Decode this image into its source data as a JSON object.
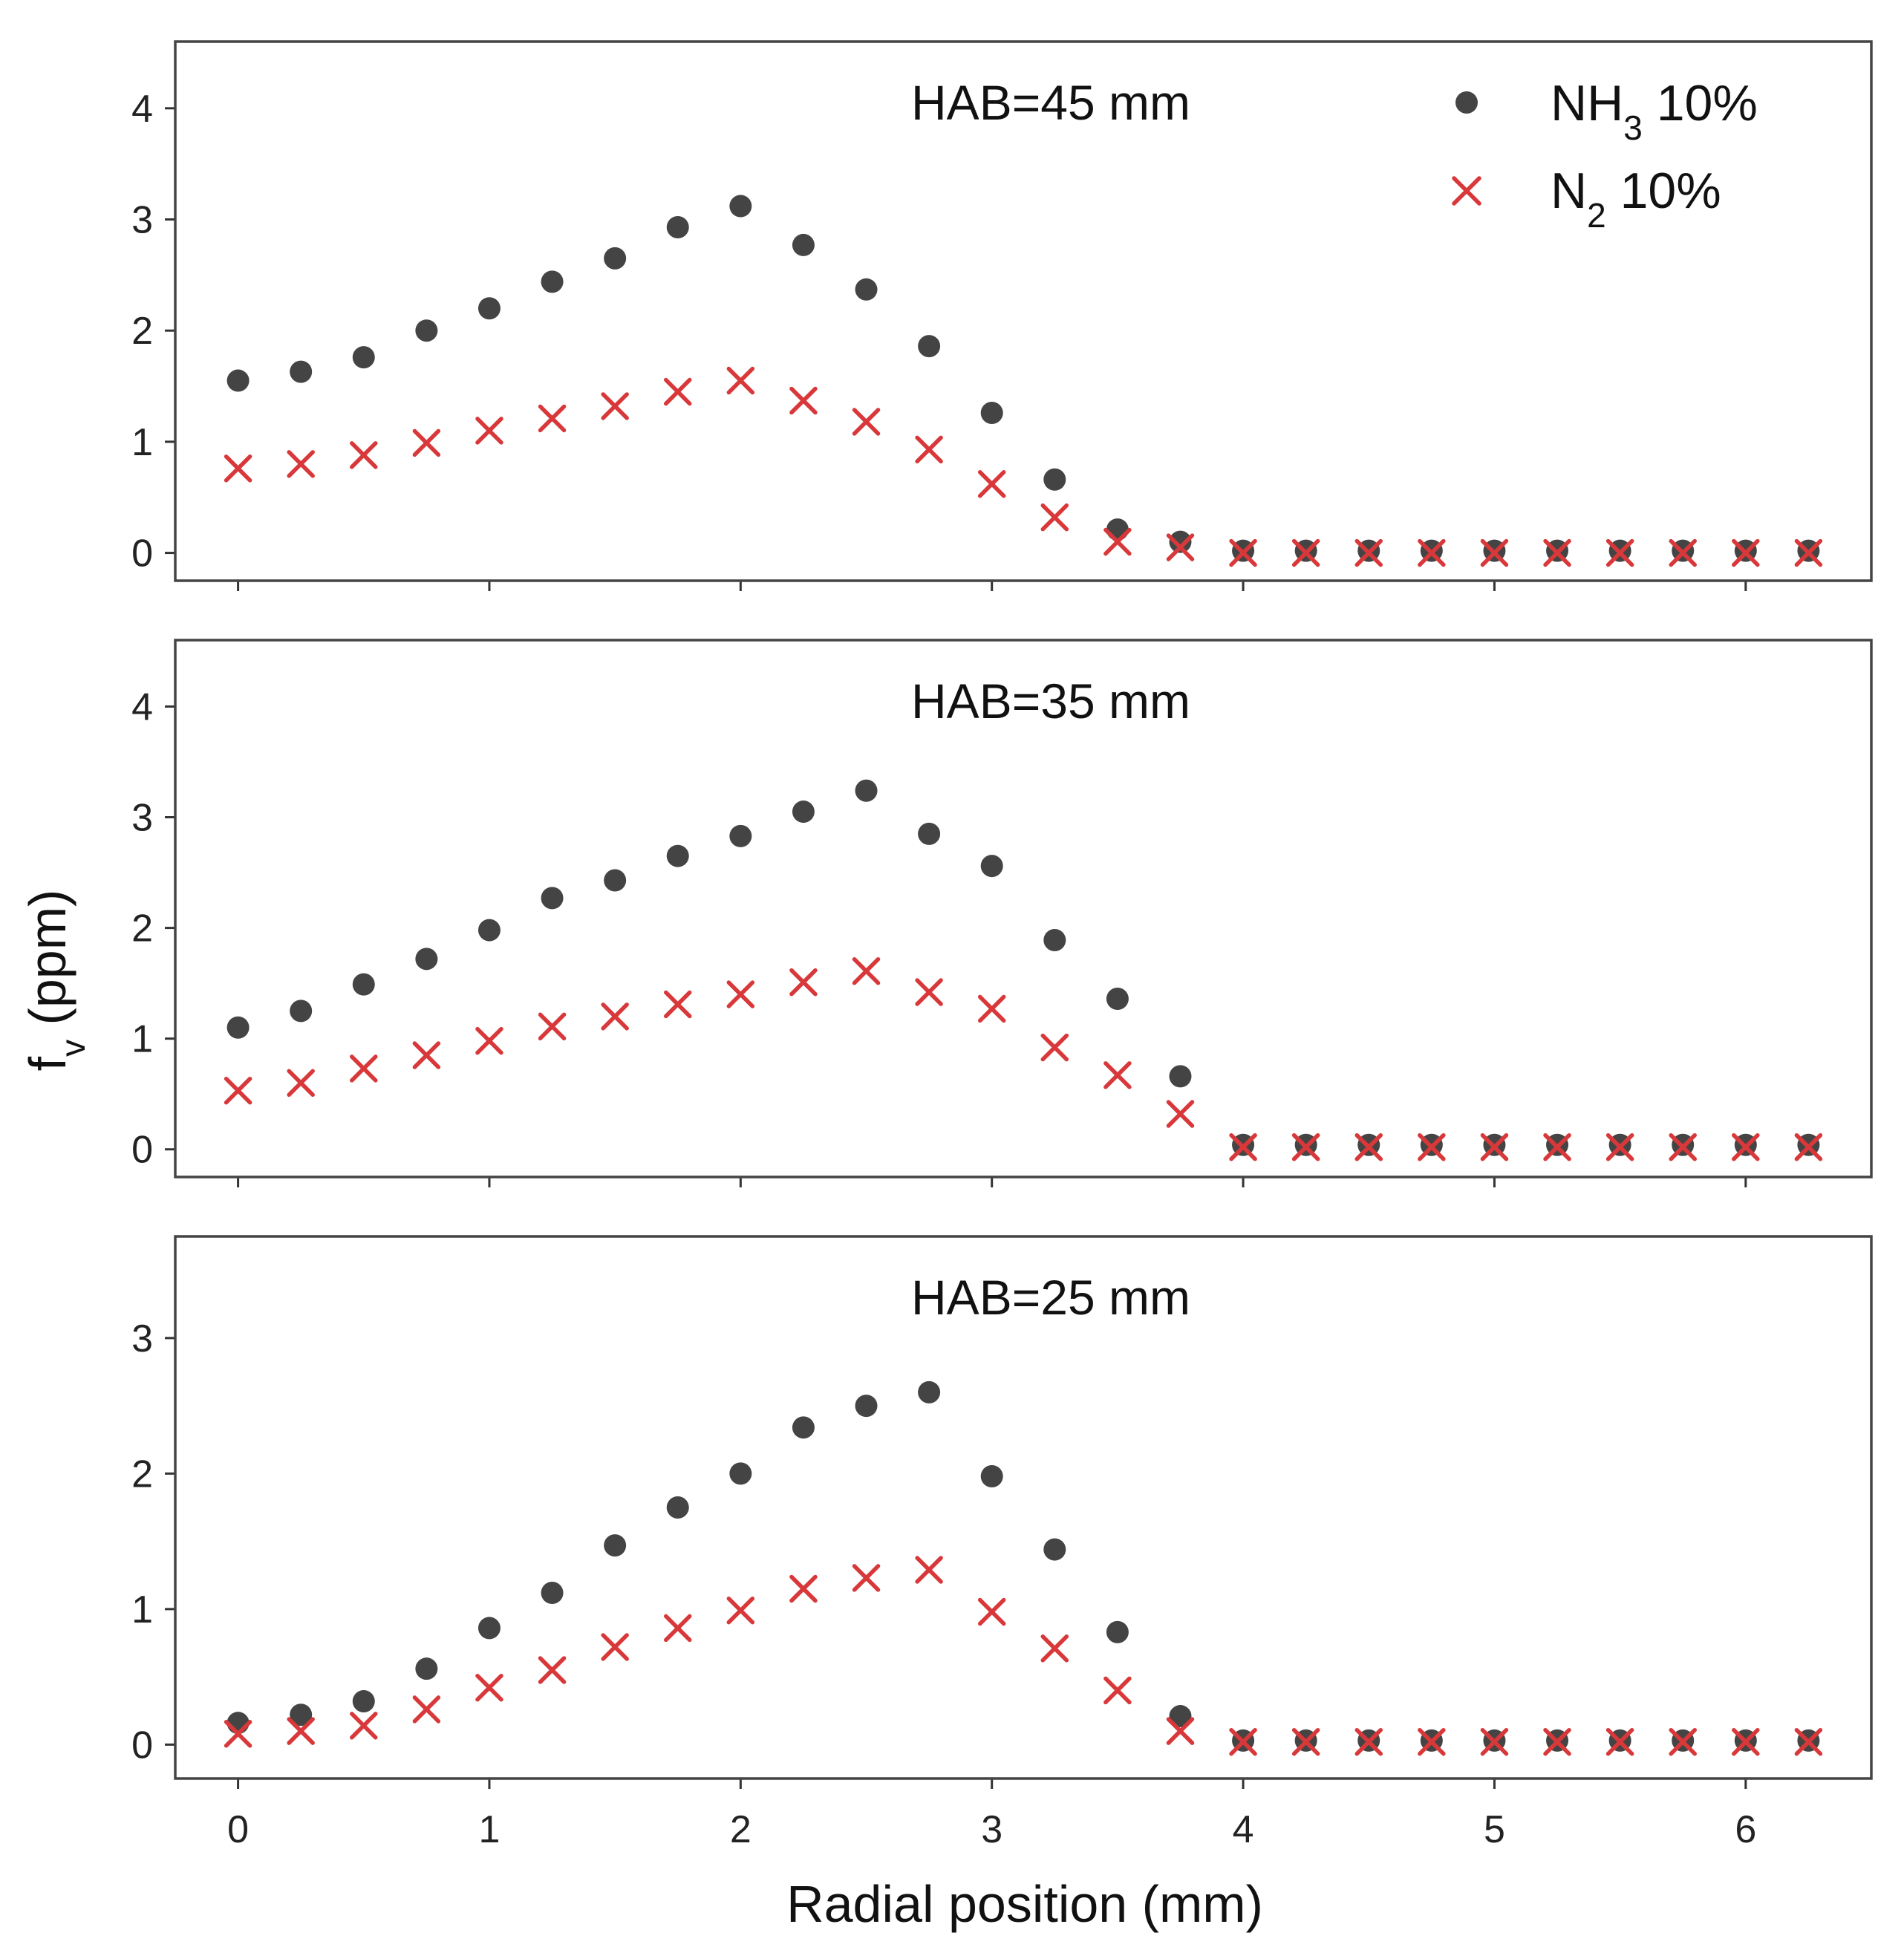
{
  "chart_data": {
    "type": "scatter",
    "xlabel": "Radial position (mm)",
    "ylabel": "f",
    "ylabel_subscript": "v",
    "ylabel_unit": " (ppm)",
    "xlim": [
      -0.25,
      6.5
    ],
    "xticks": [
      0,
      1,
      2,
      3,
      4,
      5,
      6
    ],
    "x": [
      0,
      0.25,
      0.5,
      0.75,
      1,
      1.25,
      1.5,
      1.75,
      2,
      2.25,
      2.5,
      2.75,
      3,
      3.25,
      3.5,
      3.75,
      4,
      4.25,
      4.5,
      4.75,
      5,
      5.25,
      5.5,
      5.75,
      6,
      6.25
    ],
    "legend": {
      "position": "top-right",
      "entries": [
        {
          "base": "NH",
          "sub": "3",
          "suffix": " 10%",
          "marker": "circle",
          "color": "#444444"
        },
        {
          "base": "N",
          "sub": "2",
          "suffix": " 10%",
          "marker": "x",
          "color": "#d9383a"
        }
      ]
    },
    "panels": [
      {
        "title": "HAB=45 mm",
        "ylim": [
          -0.25,
          4.6
        ],
        "yticks": [
          0,
          1,
          2,
          3,
          4
        ],
        "series": [
          {
            "name": "NH3 10%",
            "values": [
              1.55,
              1.63,
              1.76,
              2.0,
              2.2,
              2.44,
              2.65,
              2.93,
              3.12,
              2.77,
              2.37,
              1.86,
              1.26,
              0.66,
              0.21,
              0.1,
              0.02,
              0.02,
              0.02,
              0.02,
              0.02,
              0.02,
              0.02,
              0.02,
              0.02,
              0.02
            ]
          },
          {
            "name": "N2 10%",
            "values": [
              0.76,
              0.8,
              0.88,
              0.99,
              1.1,
              1.21,
              1.32,
              1.45,
              1.55,
              1.37,
              1.18,
              0.93,
              0.62,
              0.32,
              0.1,
              0.05,
              0.0,
              0.0,
              0.0,
              0.0,
              0.0,
              0.0,
              0.0,
              0.0,
              0.0,
              0.0
            ]
          }
        ]
      },
      {
        "title": "HAB=35 mm",
        "ylim": [
          -0.25,
          4.6
        ],
        "yticks": [
          0,
          1,
          2,
          3,
          4
        ],
        "series": [
          {
            "name": "NH3 10%",
            "values": [
              1.1,
              1.25,
              1.49,
              1.72,
              1.98,
              2.27,
              2.43,
              2.65,
              2.83,
              3.05,
              3.24,
              2.85,
              2.56,
              1.89,
              1.36,
              0.66,
              0.04,
              0.04,
              0.04,
              0.04,
              0.04,
              0.04,
              0.04,
              0.04,
              0.04,
              0.04
            ]
          },
          {
            "name": "N2 10%",
            "values": [
              0.53,
              0.6,
              0.73,
              0.85,
              0.98,
              1.11,
              1.2,
              1.31,
              1.4,
              1.51,
              1.61,
              1.42,
              1.27,
              0.92,
              0.67,
              0.32,
              0.02,
              0.02,
              0.02,
              0.02,
              0.02,
              0.02,
              0.02,
              0.02,
              0.02,
              0.02
            ]
          }
        ]
      },
      {
        "title": "HAB=25 mm",
        "ylim": [
          -0.25,
          3.75
        ],
        "yticks": [
          0,
          1,
          2,
          3
        ],
        "series": [
          {
            "name": "NH3 10%",
            "values": [
              0.16,
              0.22,
              0.32,
              0.56,
              0.86,
              1.12,
              1.47,
              1.75,
              2.0,
              2.34,
              2.5,
              2.6,
              1.98,
              1.44,
              0.83,
              0.21,
              0.03,
              0.03,
              0.03,
              0.03,
              0.03,
              0.03,
              0.03,
              0.03,
              0.03,
              0.03
            ]
          },
          {
            "name": "N2 10%",
            "values": [
              0.08,
              0.1,
              0.14,
              0.26,
              0.42,
              0.55,
              0.72,
              0.86,
              0.99,
              1.15,
              1.23,
              1.29,
              0.98,
              0.71,
              0.4,
              0.1,
              0.02,
              0.02,
              0.02,
              0.02,
              0.02,
              0.02,
              0.02,
              0.02,
              0.02,
              0.02
            ]
          }
        ]
      }
    ]
  }
}
